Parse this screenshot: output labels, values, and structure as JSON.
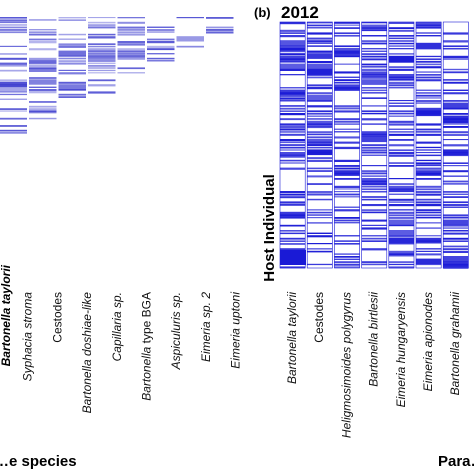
{
  "chart_data": [
    {
      "type": "heatmap",
      "panel": "",
      "title": "",
      "xlabel": "…e species",
      "ylabel": "",
      "visible_partial_label": "Bartonella taylorii",
      "categories": [
        "Syphacia stroma",
        "Cestodes",
        "Bartonella doshiae-like",
        "Capillaria sp.",
        "Bartonella type BGA",
        "Aspiculuris sp.",
        "Eimeria sp. 2",
        "Eimeria uptoni"
      ],
      "color": "#3333cc",
      "seed": 11
    },
    {
      "type": "heatmap",
      "panel": "(b)",
      "title": "2012",
      "xlabel": "Para…",
      "ylabel": "Host Individual",
      "categories": [
        "Bartonella taylorii",
        "Cestodes",
        "Heligmosimoides polygyrus",
        "Bartonella birtlesii",
        "Eimeria hungaryensis",
        "Eimeria apionodes",
        "Bartonella grahamii"
      ],
      "color": "#1a1ad6",
      "seed": 29
    }
  ]
}
